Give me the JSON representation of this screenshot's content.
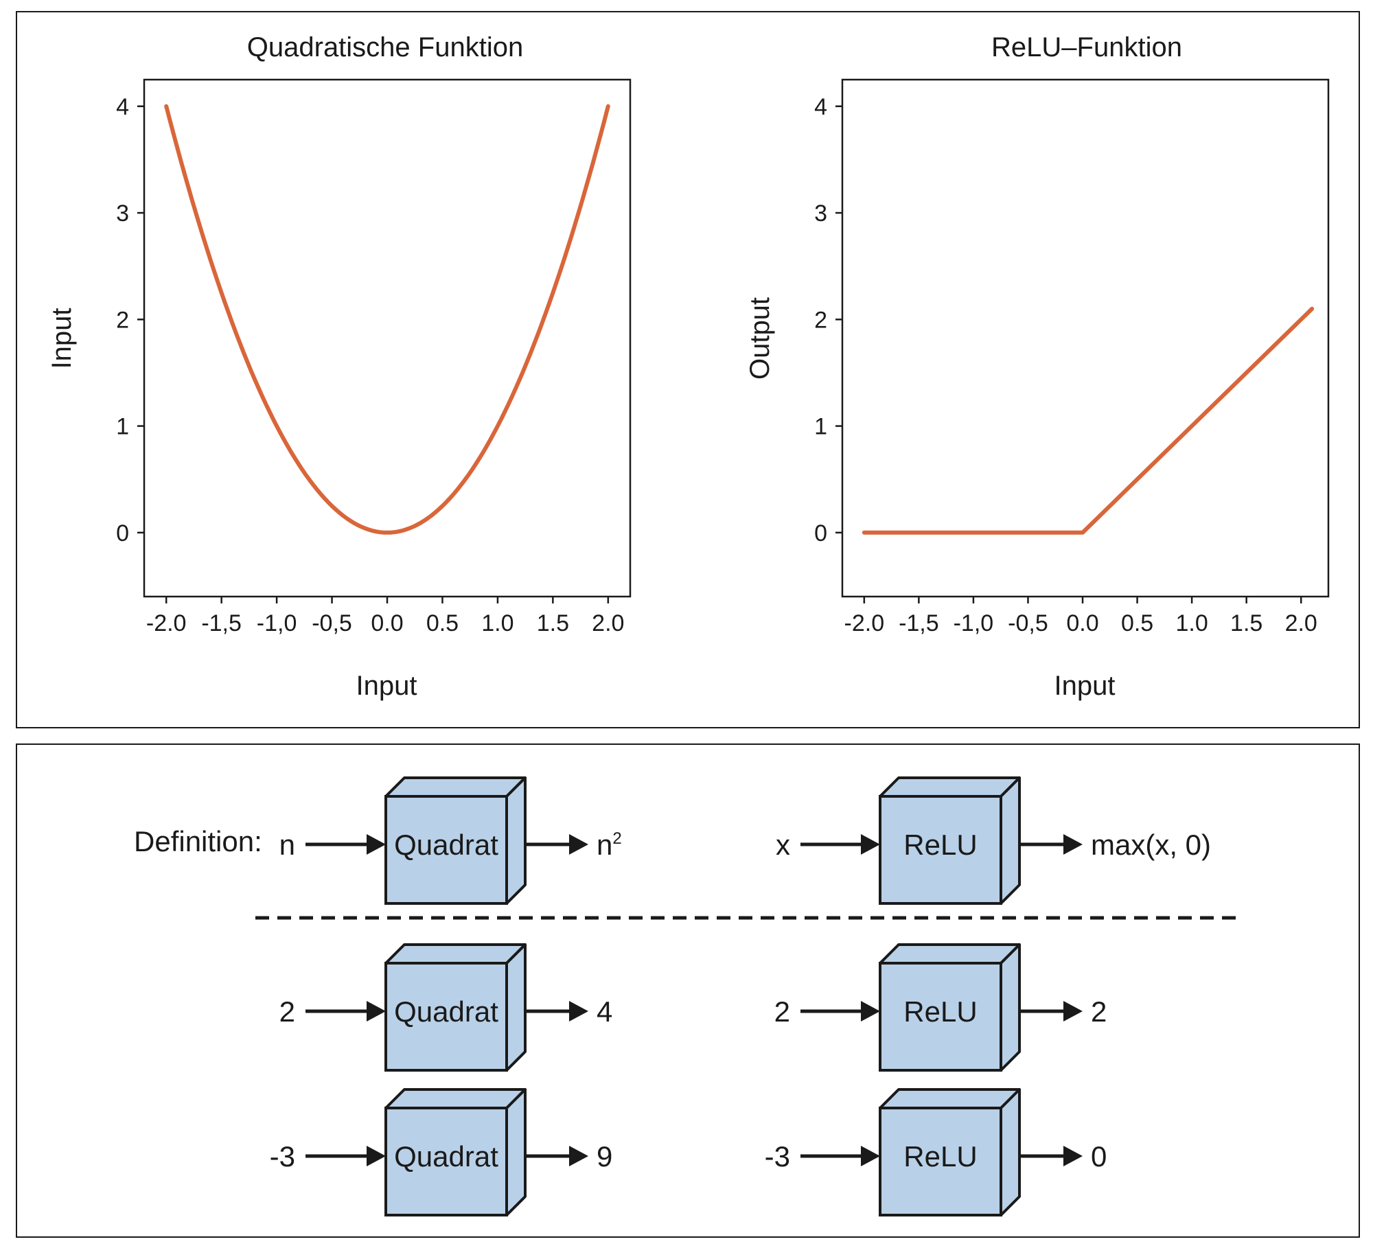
{
  "chart_data": [
    {
      "type": "line",
      "title": "Quadratische Funktion",
      "xlabel": "Input",
      "ylabel": "Input",
      "xlim": [
        -2.2,
        2.2
      ],
      "ylim": [
        -0.6,
        4.25
      ],
      "xticks": [
        -2.0,
        -1.5,
        -1.0,
        -0.5,
        0.0,
        0.5,
        1.0,
        1.5,
        2.0
      ],
      "xtick_labels": [
        "-2.0",
        "-1,5",
        "-1,0",
        "-0,5",
        "0.0",
        "0.5",
        "1.0",
        "1.5",
        "2.0"
      ],
      "yticks": [
        0,
        1,
        2,
        3,
        4
      ],
      "ytick_labels": [
        "0",
        "1",
        "2",
        "3",
        "4"
      ],
      "grid": false,
      "line_color": "#d9663a",
      "series": [
        {
          "x": [
            -2.0,
            -1.75,
            -1.5,
            -1.25,
            -1.0,
            -0.75,
            -0.5,
            -0.25,
            0.0,
            0.25,
            0.5,
            0.75,
            1.0,
            1.25,
            1.5,
            1.75,
            2.0
          ],
          "y": [
            4.0,
            3.06,
            2.25,
            1.56,
            1.0,
            0.56,
            0.25,
            0.06,
            0.0,
            0.06,
            0.25,
            0.56,
            1.0,
            1.56,
            2.25,
            3.06,
            4.0
          ]
        }
      ]
    },
    {
      "type": "line",
      "title": "ReLU–Funktion",
      "xlabel": "Input",
      "ylabel": "Output",
      "xlim": [
        -2.2,
        2.25
      ],
      "ylim": [
        -0.6,
        4.25
      ],
      "xticks": [
        -2.0,
        -1.5,
        -1.0,
        -0.5,
        0.0,
        0.5,
        1.0,
        1.5,
        2.0
      ],
      "xtick_labels": [
        "-2.0",
        "-1,5",
        "-1,0",
        "-0,5",
        "0.0",
        "0.5",
        "1.0",
        "1.5",
        "2.0"
      ],
      "yticks": [
        0,
        1,
        2,
        3,
        4
      ],
      "ytick_labels": [
        "0",
        "1",
        "2",
        "3",
        "4"
      ],
      "grid": false,
      "line_color": "#d9663a",
      "series": [
        {
          "x": [
            -2.0,
            0.0,
            2.1
          ],
          "y": [
            0.0,
            0.0,
            2.1
          ]
        }
      ]
    }
  ],
  "diagram": {
    "definition_label": "Definition:",
    "box_color": "#b9d1e8",
    "columns": [
      {
        "box_label": "Quadrat",
        "rows": [
          {
            "input": "n",
            "output": "n",
            "output_sup": "2"
          },
          {
            "input": "2",
            "output": "4",
            "output_sup": ""
          },
          {
            "input": "-3",
            "output": "9",
            "output_sup": ""
          }
        ]
      },
      {
        "box_label": "ReLU",
        "rows": [
          {
            "input": "x",
            "output": "max(x, 0)",
            "output_sup": ""
          },
          {
            "input": "2",
            "output": "2",
            "output_sup": ""
          },
          {
            "input": "-3",
            "output": "0",
            "output_sup": ""
          }
        ]
      }
    ]
  }
}
